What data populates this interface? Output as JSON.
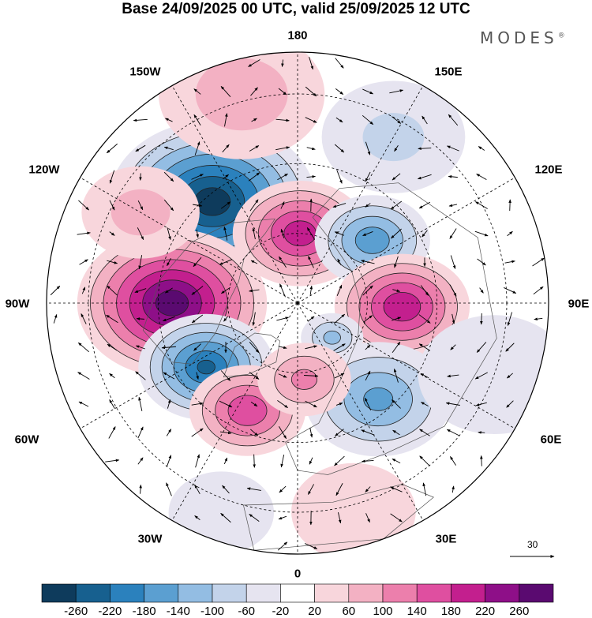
{
  "title": "Base 24/09/2025 00 UTC, valid 25/09/2025 12 UTC",
  "brand": "MODES",
  "brand_mark": "®",
  "longitude_labels": {
    "lon_180": "180",
    "lon_150w": "150W",
    "lon_150e": "150E",
    "lon_120w": "120W",
    "lon_120e": "120E",
    "lon_90w": "90W",
    "lon_90e": "90E",
    "lon_60w": "60W",
    "lon_60e": "60E",
    "lon_30w": "30W",
    "lon_30e": "30E",
    "lon_0": "0"
  },
  "reference_vector": {
    "label": "30"
  },
  "colorbar": {
    "colors": [
      "#0e3b5c",
      "#17608f",
      "#2b81bd",
      "#5b9fd1",
      "#93bde3",
      "#c3d3ea",
      "#e6e4f0",
      "#ffffff",
      "#f8d6dc",
      "#f3b1c3",
      "#ec7fac",
      "#df4fa0",
      "#c31f8e",
      "#8e0f88",
      "#5a0a70"
    ],
    "labels": [
      "-260",
      "-220",
      "-180",
      "-140",
      "-100",
      "-60",
      "-20",
      "20",
      "60",
      "100",
      "140",
      "180",
      "220",
      "260"
    ]
  },
  "anomaly_centers": [
    {
      "name": "low-bering",
      "lon": -140,
      "colat": 38,
      "value": -280,
      "radius": 24
    },
    {
      "name": "high-arctic-180",
      "lon": 178,
      "colat": 20,
      "value": 200,
      "radius": 16
    },
    {
      "name": "low-east-siberia",
      "lon": 130,
      "colat": 28,
      "value": -160,
      "radius": 14
    },
    {
      "name": "high-canada",
      "lon": -90,
      "colat": 36,
      "value": 280,
      "radius": 22
    },
    {
      "name": "high-central-siberia",
      "lon": 88,
      "colat": 30,
      "value": 210,
      "radius": 16
    },
    {
      "name": "low-labrador",
      "lon": -55,
      "colat": 32,
      "value": -220,
      "radius": 16
    },
    {
      "name": "low-west-russia",
      "lon": 40,
      "colat": 36,
      "value": -140,
      "radius": 18
    },
    {
      "name": "low-barents",
      "lon": 45,
      "colat": 14,
      "value": -100,
      "radius": 8
    },
    {
      "name": "high-north-atlantic",
      "lon": -25,
      "colat": 34,
      "value": 170,
      "radius": 14
    },
    {
      "name": "high-scandinavia",
      "lon": 5,
      "colat": 22,
      "value": 100,
      "radius": 12
    },
    {
      "name": "high-north-pacific",
      "lon": -165,
      "colat": 62,
      "value": 80,
      "radius": 22
    },
    {
      "name": "low-west-pacific",
      "lon": 150,
      "colat": 55,
      "value": -60,
      "radius": 20
    },
    {
      "name": "high-west-us",
      "lon": -120,
      "colat": 52,
      "value": 70,
      "radius": 16
    },
    {
      "name": "low-central-asia",
      "lon": 70,
      "colat": 60,
      "value": -50,
      "radius": 22
    },
    {
      "name": "high-north-africa",
      "lon": 15,
      "colat": 62,
      "value": 50,
      "radius": 18
    },
    {
      "name": "low-east-atlantic",
      "lon": -20,
      "colat": 64,
      "value": -40,
      "radius": 16
    }
  ]
}
